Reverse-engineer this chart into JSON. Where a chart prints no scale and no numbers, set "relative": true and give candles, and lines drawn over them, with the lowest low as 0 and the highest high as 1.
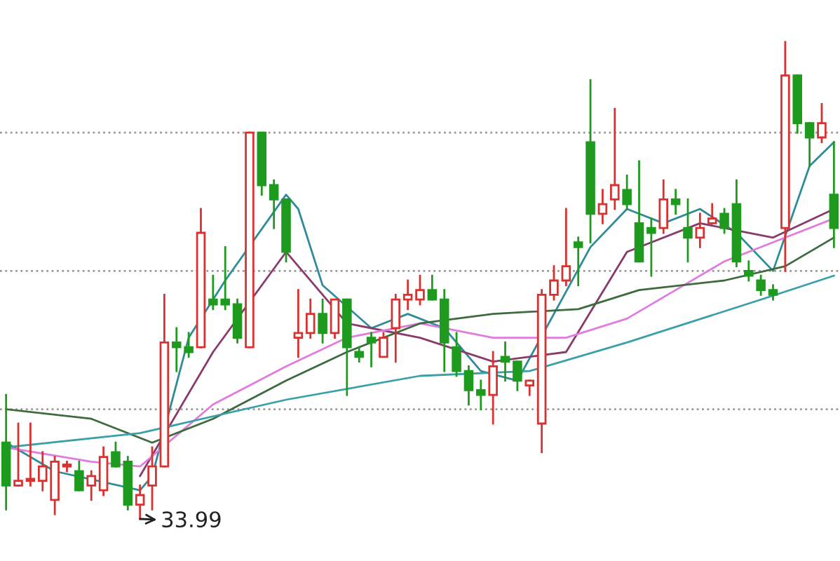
{
  "chart_data": {
    "type": "candlestick",
    "relative": true,
    "categories": [
      null,
      null,
      null,
      null,
      null,
      null,
      null,
      null,
      null,
      null,
      null,
      null,
      null,
      null,
      null,
      null,
      null,
      null,
      null,
      null,
      null,
      null,
      null,
      null,
      null,
      null,
      null,
      null,
      null,
      null,
      null,
      null,
      null,
      null,
      null,
      null,
      null,
      null,
      null,
      null,
      null,
      null,
      null,
      null,
      null,
      null,
      null,
      null,
      null,
      null,
      null,
      null,
      null,
      null,
      null,
      null,
      null,
      null,
      null,
      null,
      null,
      null,
      null,
      null,
      null,
      null,
      null,
      null,
      null
    ],
    "ohlc": [
      [
        0.16,
        0.26,
        0.02,
        0.07
      ],
      [
        0.07,
        0.2,
        0.07,
        0.08
      ],
      [
        0.08,
        0.2,
        0.07,
        0.08
      ],
      [
        0.08,
        0.14,
        0.06,
        0.11
      ],
      [
        0.04,
        0.13,
        0.01,
        0.12
      ],
      [
        0.11,
        0.12,
        0.1,
        0.11
      ],
      [
        0.1,
        0.12,
        0.06,
        0.06
      ],
      [
        0.07,
        0.1,
        0.04,
        0.09
      ],
      [
        0.06,
        0.15,
        0.05,
        0.13
      ],
      [
        0.14,
        0.16,
        0.11,
        0.11
      ],
      [
        0.12,
        0.13,
        0.02,
        0.03
      ],
      [
        0.03,
        0.07,
        0,
        0.05
      ],
      [
        0.07,
        0.15,
        0.02,
        0.11
      ],
      [
        0.11,
        0.47,
        0.11,
        0.37
      ],
      [
        0.37,
        0.4,
        0.31,
        0.36
      ],
      [
        0.36,
        0.39,
        0.34,
        0.35
      ],
      [
        0.36,
        0.65,
        0.36,
        0.6
      ],
      [
        0.46,
        0.51,
        0.44,
        0.45
      ],
      [
        0.46,
        0.57,
        0.44,
        0.45
      ],
      [
        0.45,
        0.46,
        0.37,
        0.38
      ],
      [
        0.36,
        0.81,
        0.36,
        0.81
      ],
      [
        0.81,
        0.81,
        0.68,
        0.7
      ],
      [
        0.7,
        0.71,
        0.61,
        0.67
      ],
      [
        0.67,
        0.67,
        0.54,
        0.56
      ],
      [
        0.38,
        0.48,
        0.34,
        0.39
      ],
      [
        0.39,
        0.46,
        0.38,
        0.43
      ],
      [
        0.43,
        0.46,
        0.37,
        0.39
      ],
      [
        0.39,
        0.46,
        0.38,
        0.46
      ],
      [
        0.46,
        0.46,
        0.26,
        0.36
      ],
      [
        0.35,
        0.36,
        0.33,
        0.34
      ],
      [
        0.38,
        0.39,
        0.32,
        0.37
      ],
      [
        0.34,
        0.39,
        0.34,
        0.38
      ],
      [
        0.4,
        0.47,
        0.33,
        0.46
      ],
      [
        0.46,
        0.5,
        0.44,
        0.47
      ],
      [
        0.46,
        0.51,
        0.45,
        0.48
      ],
      [
        0.48,
        0.51,
        0.46,
        0.46
      ],
      [
        0.46,
        0.48,
        0.31,
        0.37
      ],
      [
        0.36,
        0.39,
        0.3,
        0.31
      ],
      [
        0.31,
        0.32,
        0.24,
        0.27
      ],
      [
        0.27,
        0.29,
        0.23,
        0.26
      ],
      [
        0.26,
        0.35,
        0.2,
        0.32
      ],
      [
        0.34,
        0.37,
        0.29,
        0.33
      ],
      [
        0.33,
        0.33,
        0.27,
        0.29
      ],
      [
        0.28,
        0.29,
        0.26,
        0.29
      ],
      [
        0.2,
        0.48,
        0.14,
        0.47
      ],
      [
        0.47,
        0.53,
        0.46,
        0.5
      ],
      [
        0.5,
        0.65,
        0.49,
        0.53
      ],
      [
        0.58,
        0.59,
        0.49,
        0.57
      ],
      [
        0.79,
        0.92,
        0.58,
        0.64
      ],
      [
        0.64,
        0.69,
        0.62,
        0.66
      ],
      [
        0.67,
        0.86,
        0.65,
        0.7
      ],
      [
        0.69,
        0.72,
        0.65,
        0.66
      ],
      [
        0.62,
        0.75,
        0.54,
        0.54
      ],
      [
        0.61,
        0.63,
        0.51,
        0.6
      ],
      [
        0.61,
        0.71,
        0.6,
        0.67
      ],
      [
        0.67,
        0.69,
        0.64,
        0.66
      ],
      [
        0.61,
        0.67,
        0.54,
        0.59
      ],
      [
        0.59,
        0.64,
        0.57,
        0.61
      ],
      [
        0.62,
        0.66,
        0.62,
        0.63
      ],
      [
        0.64,
        0.65,
        0.6,
        0.61
      ],
      [
        0.66,
        0.71,
        0.53,
        0.54
      ],
      [
        0.52,
        0.54,
        0.5,
        0.51
      ],
      [
        0.5,
        0.51,
        0.47,
        0.48
      ],
      [
        0.48,
        0.49,
        0.46,
        0.47
      ],
      [
        0.61,
        1,
        0.52,
        0.93
      ],
      [
        0.93,
        0.93,
        0.81,
        0.83
      ],
      [
        0.83,
        0.83,
        0.74,
        0.8
      ],
      [
        0.8,
        0.87,
        0.79,
        0.83
      ],
      [
        0.68,
        0.79,
        0.57,
        0.61
      ]
    ],
    "series": [
      {
        "type": "line",
        "color": "#2e8b99",
        "values": [
          0.16,
          null,
          null,
          null,
          0.1,
          null,
          null,
          null,
          null,
          null,
          null,
          0.06,
          0.09,
          null,
          null,
          0.38,
          null,
          null,
          0.5,
          null,
          null,
          null,
          null,
          0.68,
          0.65,
          null,
          0.49,
          null,
          null,
          null,
          0.4,
          null,
          null,
          0.43,
          null,
          null,
          0.4,
          null,
          null,
          0.31,
          null,
          null,
          0.29,
          null,
          null,
          0.43,
          null,
          null,
          0.57,
          null,
          null,
          0.65,
          null,
          null,
          0.62,
          null,
          null,
          0.65,
          null,
          null,
          0.6,
          null,
          null,
          0.52,
          null,
          null,
          0.74,
          null,
          0.79
        ]
      },
      {
        "type": "line",
        "color": "#8a3a6a",
        "values": [
          null,
          null,
          null,
          null,
          null,
          null,
          null,
          null,
          null,
          null,
          null,
          0.09,
          null,
          null,
          null,
          null,
          null,
          0.35,
          null,
          null,
          null,
          null,
          null,
          0.56,
          null,
          null,
          null,
          null,
          0.41,
          null,
          null,
          null,
          null,
          null,
          0.38,
          null,
          null,
          null,
          null,
          null,
          0.33,
          null,
          null,
          null,
          null,
          null,
          0.35,
          null,
          null,
          null,
          null,
          0.56,
          null,
          null,
          null,
          null,
          null,
          0.62,
          null,
          null,
          null,
          null,
          null,
          0.59,
          null,
          null,
          null,
          null,
          0.65
        ]
      },
      {
        "type": "line",
        "color": "#e07be0",
        "values": [
          0.15,
          null,
          null,
          null,
          null,
          null,
          null,
          0.12,
          null,
          null,
          null,
          0.11,
          null,
          null,
          null,
          null,
          null,
          0.24,
          null,
          null,
          null,
          null,
          null,
          0.32,
          null,
          null,
          null,
          null,
          0.38,
          null,
          null,
          null,
          null,
          null,
          0.41,
          null,
          null,
          null,
          null,
          null,
          0.38,
          null,
          null,
          null,
          null,
          null,
          0.38,
          null,
          null,
          null,
          null,
          0.42,
          null,
          null,
          null,
          null,
          null,
          null,
          null,
          0.54,
          null,
          null,
          null,
          null,
          0.59,
          null,
          null,
          null,
          0.63
        ]
      },
      {
        "type": "line",
        "color": "#3d6b3d",
        "values": [
          0.23,
          null,
          null,
          null,
          null,
          null,
          null,
          0.21,
          null,
          null,
          null,
          null,
          0.16,
          null,
          null,
          null,
          null,
          0.21,
          null,
          null,
          null,
          null,
          null,
          0.29,
          null,
          null,
          null,
          null,
          0.35,
          null,
          null,
          null,
          null,
          null,
          0.41,
          null,
          null,
          null,
          null,
          null,
          0.43,
          null,
          null,
          null,
          null,
          null,
          null,
          0.44,
          null,
          null,
          null,
          null,
          0.48,
          null,
          null,
          null,
          null,
          null,
          null,
          0.5,
          null,
          null,
          null,
          null,
          0.53,
          null,
          null,
          null,
          0.59
        ]
      },
      {
        "type": "line",
        "color": "#3aa0a8",
        "values": [
          0.15,
          null,
          null,
          null,
          null,
          null,
          null,
          null,
          null,
          null,
          null,
          0.18,
          null,
          null,
          null,
          null,
          null,
          null,
          null,
          null,
          null,
          null,
          null,
          0.25,
          null,
          null,
          null,
          null,
          null,
          null,
          null,
          null,
          null,
          null,
          0.3,
          null,
          null,
          null,
          null,
          null,
          null,
          null,
          null,
          0.31,
          null,
          null,
          null,
          null,
          null,
          null,
          null,
          0.37,
          null,
          null,
          null,
          null,
          null,
          null,
          null,
          null,
          null,
          null,
          0.46,
          null,
          null,
          null,
          null,
          null,
          0.51
        ]
      }
    ],
    "ref_lines": [
      {
        "axis": "y",
        "value": 0.81,
        "color": "#999999",
        "line_style": "dotted"
      },
      {
        "axis": "y",
        "value": 0.52,
        "color": "#999999",
        "line_style": "dotted"
      },
      {
        "axis": "y",
        "value": 0.23,
        "color": "#999999",
        "line_style": "dotted"
      }
    ],
    "annotations": [
      "33.99"
    ]
  }
}
